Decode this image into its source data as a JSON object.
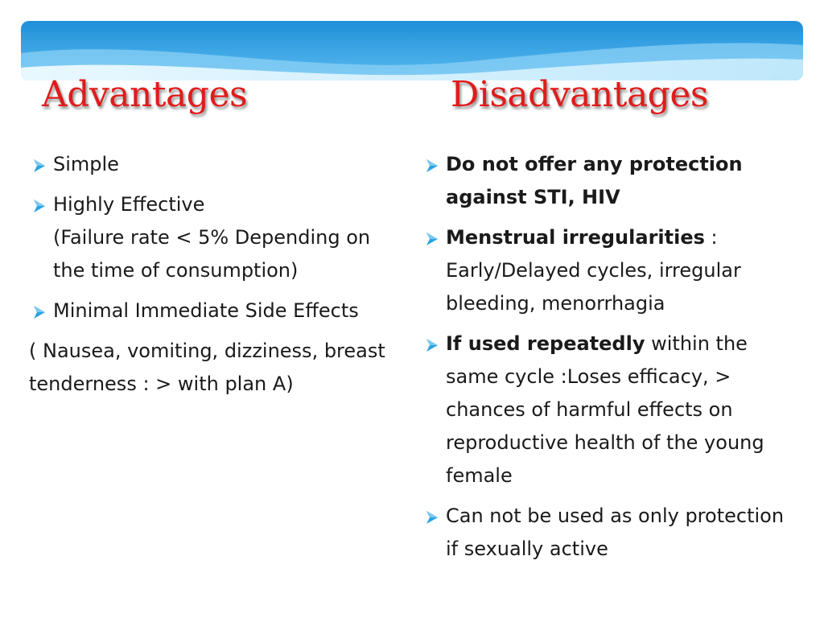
{
  "headings": {
    "advantages": "Advantages",
    "disadvantages": "Disadvantages"
  },
  "colors": {
    "heading": "#e01b1b",
    "bullet_arrow": "#29a3e0",
    "banner_dark": "#1f8fd9",
    "banner_light": "#cfeefc"
  },
  "icons": {
    "bullet": "arrow-bullet-icon"
  },
  "advantages": {
    "items": [
      {
        "line1": "Simple"
      },
      {
        "line1": "Highly Effective",
        "line2": "(Failure rate < 5% Depending on the time of consumption)"
      },
      {
        "line1": "Minimal Immediate Side Effects"
      }
    ],
    "note": "( Nausea, vomiting, dizziness, breast tenderness : > with plan A)"
  },
  "disadvantages": {
    "items": [
      {
        "bold": "Do not offer any protection against STI, HIV",
        "rest": ""
      },
      {
        "bold": "Menstrual irregularities",
        "rest": " : Early/Delayed cycles, irregular bleeding, menorrhagia"
      },
      {
        "bold": "If used repeatedly",
        "rest": " within the same cycle :Loses efficacy, > chances of harmful effects on reproductive health of the young female"
      },
      {
        "bold": "",
        "rest": "Can not be used as only protection if sexually active"
      }
    ]
  }
}
